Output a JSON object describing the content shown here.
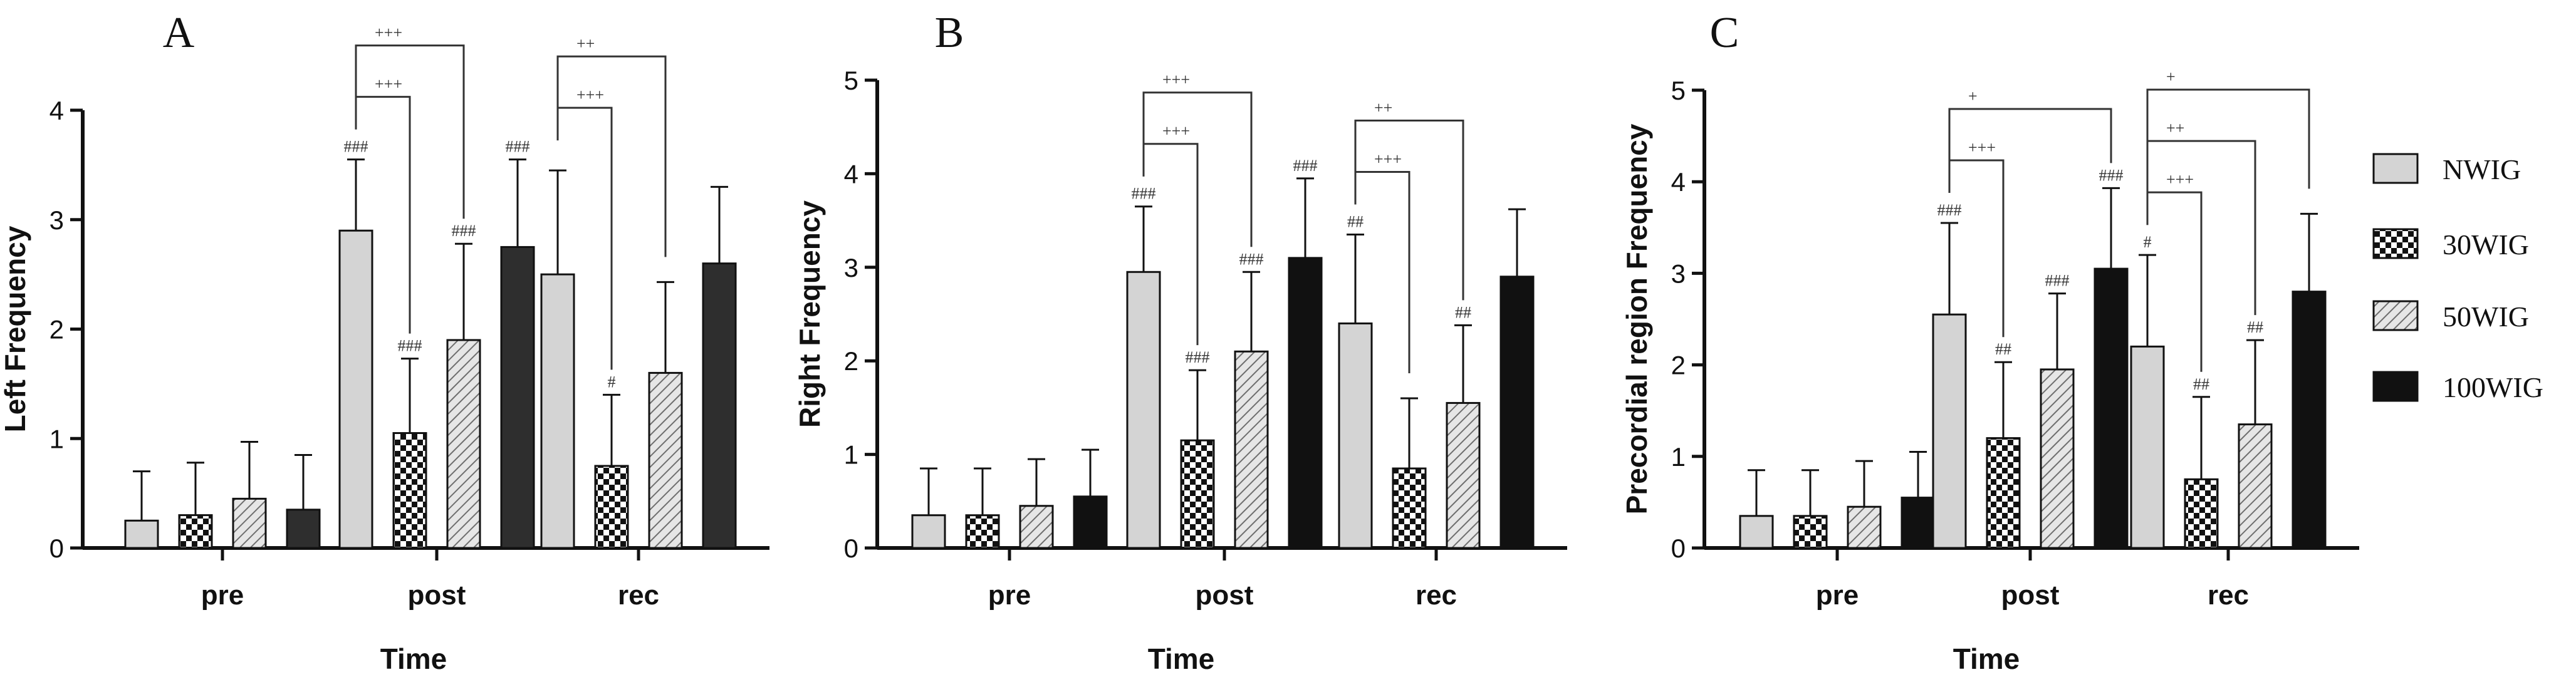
{
  "figure": {
    "colors": {
      "NWIG": "#d4d4d4",
      "WIG30": "#ffffff",
      "WIG50": "#e4e4e4",
      "WIG100": "#111111",
      "axis": "#111111",
      "bar_dark_A": "#2e2e2e"
    }
  },
  "legend": {
    "entries": [
      {
        "label": "NWIG",
        "pattern": "solid-light"
      },
      {
        "label": "30WIG",
        "pattern": "checker"
      },
      {
        "label": "50WIG",
        "pattern": "hatch"
      },
      {
        "label": "100WIG",
        "pattern": "solid-dark"
      }
    ]
  },
  "chart_data": [
    {
      "type": "bar",
      "panel": "A",
      "ylabel": "Left Frequency",
      "xlabel": "Time",
      "ylim": [
        0,
        4
      ],
      "yticks": [
        0,
        1,
        2,
        3,
        4
      ],
      "categories": [
        "pre",
        "post",
        "rec"
      ],
      "series": [
        {
          "name": "NWIG",
          "values": [
            0.25,
            2.9,
            2.5
          ],
          "errors": [
            0.45,
            0.65,
            0.95
          ],
          "marks": [
            "",
            "###",
            ""
          ]
        },
        {
          "name": "30WIG",
          "values": [
            0.3,
            1.05,
            0.75
          ],
          "errors": [
            0.48,
            0.68,
            0.65
          ],
          "marks": [
            "",
            "###",
            "#"
          ]
        },
        {
          "name": "50WIG",
          "values": [
            0.45,
            1.9,
            1.6
          ],
          "errors": [
            0.52,
            0.88,
            0.83
          ],
          "marks": [
            "",
            "###",
            ""
          ]
        },
        {
          "name": "100WIG",
          "values": [
            0.35,
            2.75,
            2.6
          ],
          "errors": [
            0.5,
            0.8,
            0.7
          ],
          "marks": [
            "",
            "###",
            ""
          ]
        }
      ],
      "brackets": [
        {
          "group": 1,
          "from": 0,
          "to": 1,
          "label": "+++",
          "level": 1
        },
        {
          "group": 1,
          "from": 0,
          "to": 2,
          "label": "+++",
          "level": 2
        },
        {
          "group": 2,
          "from": 0,
          "to": 1,
          "label": "+++",
          "level": 1
        },
        {
          "group": 2,
          "from": 0,
          "to": 2,
          "label": "++",
          "level": 2
        }
      ]
    },
    {
      "type": "bar",
      "panel": "B",
      "ylabel": "Right Frequency",
      "xlabel": "Time",
      "ylim": [
        0,
        5
      ],
      "yticks": [
        0,
        1,
        2,
        3,
        4,
        5
      ],
      "categories": [
        "pre",
        "post",
        "rec"
      ],
      "series": [
        {
          "name": "NWIG",
          "values": [
            0.35,
            2.95,
            2.4
          ],
          "errors": [
            0.5,
            0.7,
            0.95
          ],
          "marks": [
            "",
            "###",
            "##"
          ]
        },
        {
          "name": "30WIG",
          "values": [
            0.35,
            1.15,
            0.85
          ],
          "errors": [
            0.5,
            0.75,
            0.75
          ],
          "marks": [
            "",
            "###",
            ""
          ]
        },
        {
          "name": "50WIG",
          "values": [
            0.45,
            2.1,
            1.55
          ],
          "errors": [
            0.5,
            0.85,
            0.83
          ],
          "marks": [
            "",
            "###",
            "##"
          ]
        },
        {
          "name": "100WIG",
          "values": [
            0.55,
            3.1,
            2.9
          ],
          "errors": [
            0.5,
            0.85,
            0.72
          ],
          "marks": [
            "",
            "###",
            ""
          ]
        }
      ],
      "brackets": [
        {
          "group": 1,
          "from": 0,
          "to": 1,
          "label": "+++",
          "level": 1
        },
        {
          "group": 1,
          "from": 0,
          "to": 2,
          "label": "+++",
          "level": 2
        },
        {
          "group": 2,
          "from": 0,
          "to": 1,
          "label": "+++",
          "level": 1
        },
        {
          "group": 2,
          "from": 0,
          "to": 2,
          "label": "++",
          "level": 2
        }
      ]
    },
    {
      "type": "bar",
      "panel": "C",
      "ylabel": "Precordial region Frequency",
      "xlabel": "Time",
      "ylim": [
        0,
        5
      ],
      "yticks": [
        0,
        1,
        2,
        3,
        4,
        5
      ],
      "categories": [
        "pre",
        "post",
        "rec"
      ],
      "series": [
        {
          "name": "NWIG",
          "values": [
            0.35,
            2.55,
            2.2
          ],
          "errors": [
            0.5,
            1.0,
            1.0
          ],
          "marks": [
            "",
            "###",
            "#"
          ]
        },
        {
          "name": "30WIG",
          "values": [
            0.35,
            1.2,
            0.75
          ],
          "errors": [
            0.5,
            0.83,
            0.9
          ],
          "marks": [
            "",
            "##",
            "##"
          ]
        },
        {
          "name": "50WIG",
          "values": [
            0.45,
            1.95,
            1.35
          ],
          "errors": [
            0.5,
            0.83,
            0.92
          ],
          "marks": [
            "",
            "###",
            "##"
          ]
        },
        {
          "name": "100WIG",
          "values": [
            0.55,
            3.05,
            2.8
          ],
          "errors": [
            0.5,
            0.88,
            0.85
          ],
          "marks": [
            "",
            "###",
            ""
          ]
        }
      ],
      "brackets": [
        {
          "group": 1,
          "from": 0,
          "to": 1,
          "label": "+++",
          "level": 1
        },
        {
          "group": 1,
          "from": 0,
          "to": 3,
          "label": "+",
          "level": 2
        },
        {
          "group": 2,
          "from": 0,
          "to": 1,
          "label": "+++",
          "level": 1
        },
        {
          "group": 2,
          "from": 0,
          "to": 2,
          "label": "++",
          "level": 2
        },
        {
          "group": 2,
          "from": 0,
          "to": 3,
          "label": "+",
          "level": 3
        }
      ]
    }
  ]
}
